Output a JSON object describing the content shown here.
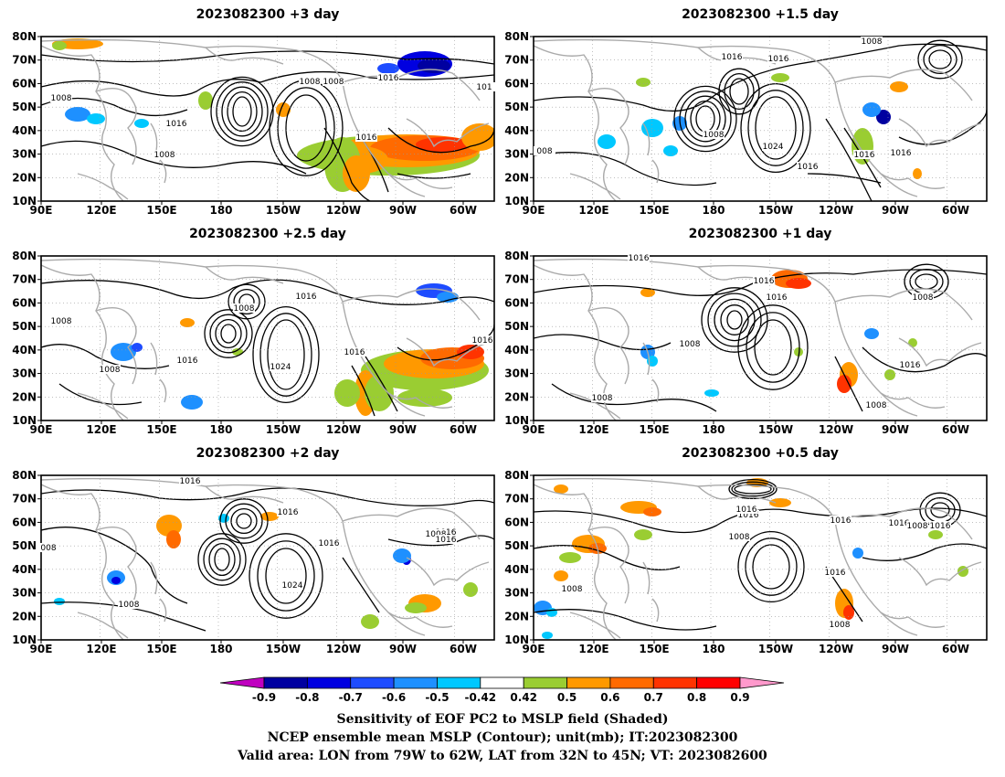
{
  "panels": [
    {
      "id": "p3",
      "title": "2023082300 +3 day",
      "labels": [
        "1008",
        "1016",
        "1008",
        "1008",
        "1016",
        "1008",
        "1016",
        "101"
      ]
    },
    {
      "id": "p15",
      "title": "2023082300 +1.5 day",
      "labels": [
        "1008",
        "1016",
        "1016",
        "1008",
        "1024",
        "1016",
        "1016",
        "1016",
        "008"
      ]
    },
    {
      "id": "p25",
      "title": "2023082300 +2.5 day",
      "labels": [
        "1008",
        "1008",
        "1016",
        "1008",
        "1024",
        "1016",
        "1016",
        "1016"
      ]
    },
    {
      "id": "p1",
      "title": "2023082300 +1 day",
      "labels": [
        "1016",
        "1016",
        "1016",
        "1008",
        "1008",
        "1016",
        "1008",
        "1008"
      ]
    },
    {
      "id": "p2",
      "title": "2023082300 +2 day",
      "labels": [
        "1016",
        "1008",
        "1016",
        "1016",
        "1024",
        "1016",
        "1008",
        "1016",
        "008"
      ]
    },
    {
      "id": "p05",
      "title": "2023082300 +0.5 day",
      "labels": [
        "1016",
        "1016",
        "1016",
        "1008",
        "1016",
        "1016",
        "1008",
        "1016",
        "1008",
        "1008"
      ]
    }
  ],
  "axes": {
    "x_ticks": [
      "90E",
      "120E",
      "150E",
      "180",
      "150W",
      "120W",
      "90W",
      "60W"
    ],
    "y_ticks": [
      "10N",
      "20N",
      "30N",
      "40N",
      "50N",
      "60N",
      "70N",
      "80N"
    ],
    "lon_range": [
      "90E",
      "50W"
    ],
    "lat_range": [
      "10N",
      "80N"
    ]
  },
  "colorbar": {
    "ticks": [
      "-0.9",
      "-0.8",
      "-0.7",
      "-0.6",
      "-0.5",
      "-0.42",
      "0.42",
      "0.5",
      "0.6",
      "0.7",
      "0.8",
      "0.9"
    ],
    "colors": [
      "#c000c0",
      "#0000a0",
      "#0000e0",
      "#1e4cff",
      "#1e90ff",
      "#00c8ff",
      "#ffffff",
      "#9acd32",
      "#ff9900",
      "#ff6a00",
      "#ff3300",
      "#ff0000",
      "#ff99cc"
    ]
  },
  "caption": {
    "line1": "Sensitivity of EOF PC2 to MSLP field (Shaded)",
    "line2": "NCEP ensemble mean MSLP (Contour); unit(mb); IT:2023082300",
    "line3": "Valid area: LON from 79W to 62W, LAT from 32N to 45N; VT: 2023082600"
  }
}
